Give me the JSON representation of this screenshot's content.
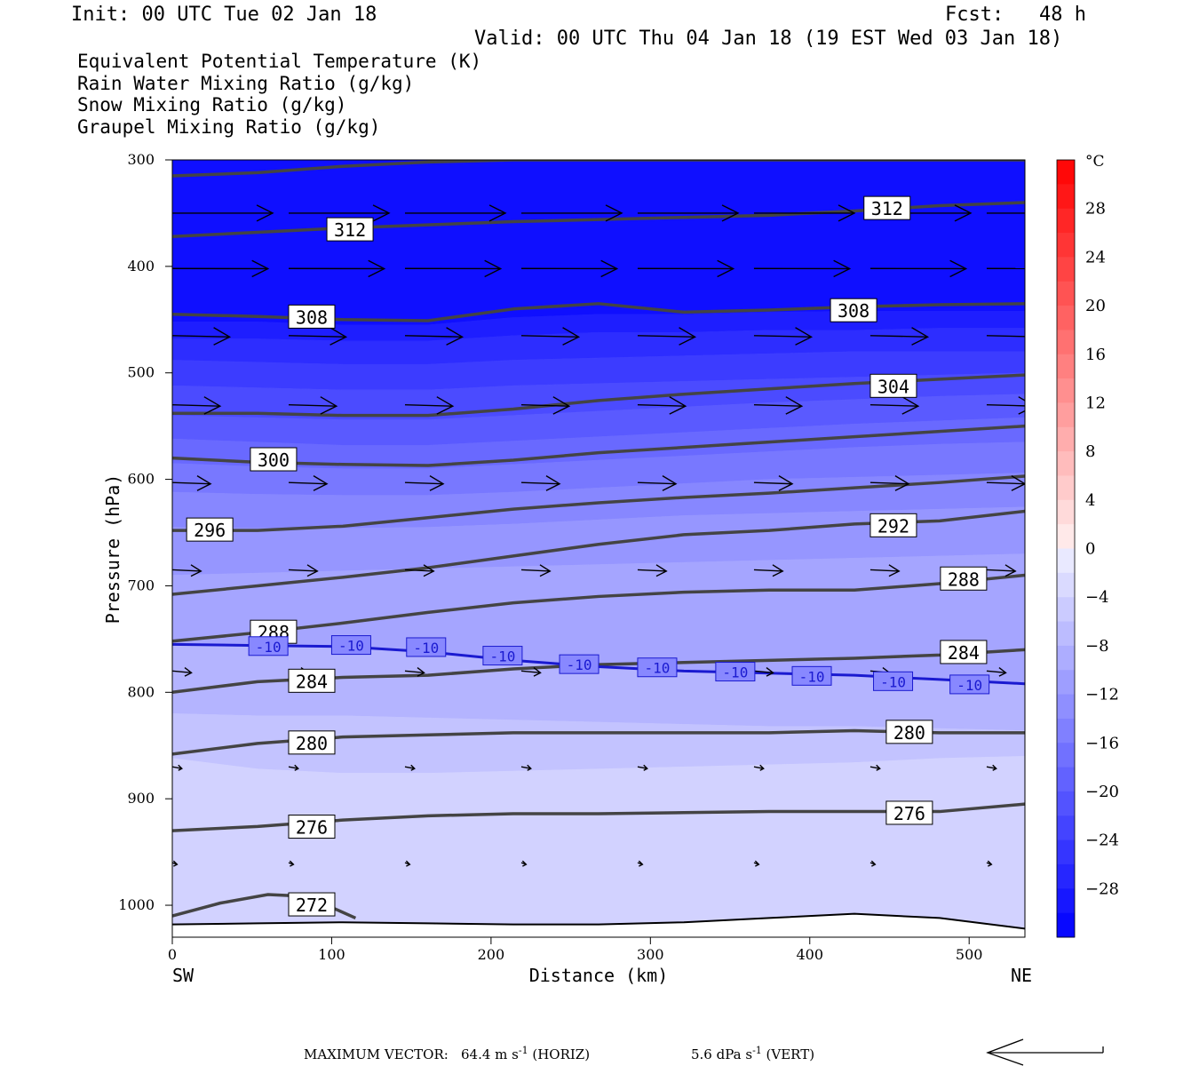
{
  "header": {
    "init": "Init: 00 UTC Tue 02 Jan 18",
    "fcst": "Fcst:   48 h",
    "valid": "Valid: 00 UTC Thu 04 Jan 18 (19 EST Wed 03 Jan 18)"
  },
  "legend": [
    {
      "label": "Equivalent Potential Temperature (K)",
      "color": "#555555"
    },
    {
      "label": "Rain Water Mixing Ratio (g/kg)",
      "color": "#007a00"
    },
    {
      "label": "Snow Mixing Ratio (g/kg)",
      "color": "#f08a55"
    },
    {
      "label": "Graupel Mixing Ratio (g/kg)",
      "color": "#f07ad0"
    }
  ],
  "footer": {
    "max_vector_label": "MAXIMUM VECTOR:",
    "horiz": "64.4 m s",
    "horiz_suffix": " (HORIZ)",
    "vert": "5.6 dPa s",
    "vert_suffix": " (VERT)",
    "exponent": "-1"
  },
  "chart_data": {
    "type": "cross-section",
    "xlabel": "Distance (km)",
    "ylabel": "Pressure (hPa)",
    "xlim": [
      0,
      535
    ],
    "ylim": [
      300,
      1030
    ],
    "x_ticks": [
      0,
      100,
      200,
      300,
      400,
      500
    ],
    "y_ticks": [
      300,
      400,
      500,
      600,
      700,
      800,
      900,
      1000
    ],
    "left_end_label": "SW",
    "right_end_label": "NE",
    "colorbar": {
      "unit": "°C",
      "labels": [
        28,
        24,
        20,
        16,
        12,
        8,
        4,
        0,
        -4,
        -8,
        -12,
        -16,
        -20,
        -24,
        -28
      ],
      "range": [
        -32,
        32
      ],
      "step": 2
    },
    "temperature_fill_layers": [
      {
        "temp": -30,
        "top": 300,
        "bottom": [
          452,
          452,
          455,
          455,
          448,
          445,
          445,
          443,
          442,
          442,
          442
        ]
      },
      {
        "temp": -28,
        "bottom": [
          468,
          468,
          470,
          470,
          465,
          462,
          462,
          460,
          460,
          458,
          458
        ]
      },
      {
        "temp": -26,
        "bottom": [
          488,
          490,
          492,
          492,
          488,
          486,
          484,
          482,
          480,
          480,
          480
        ]
      },
      {
        "temp": -24,
        "bottom": [
          512,
          514,
          516,
          516,
          512,
          510,
          508,
          506,
          504,
          502,
          500
        ]
      },
      {
        "temp": -22,
        "bottom": [
          540,
          542,
          544,
          544,
          540,
          536,
          532,
          528,
          525,
          522,
          520
        ]
      },
      {
        "temp": -20,
        "bottom": [
          562,
          565,
          568,
          568,
          564,
          560,
          556,
          552,
          548,
          545,
          542
        ]
      },
      {
        "temp": -18,
        "bottom": [
          585,
          588,
          590,
          590,
          586,
          582,
          578,
          574,
          570,
          567,
          565
        ]
      },
      {
        "temp": -16,
        "bottom": [
          612,
          614,
          615,
          615,
          612,
          608,
          604,
          600,
          598,
          596,
          594
        ]
      },
      {
        "temp": -14,
        "bottom": [
          645,
          646,
          646,
          645,
          642,
          638,
          634,
          632,
          630,
          628,
          626
        ]
      },
      {
        "temp": -12,
        "bottom": [
          690,
          688,
          686,
          684,
          682,
          680,
          678,
          676,
          674,
          672,
          670
        ]
      },
      {
        "temp": -10,
        "bottom": [
          755,
          756,
          757,
          762,
          770,
          776,
          780,
          782,
          784,
          788,
          792
        ]
      },
      {
        "temp": -8,
        "bottom": [
          820,
          822,
          822,
          824,
          826,
          828,
          830,
          832,
          832,
          834,
          836
        ]
      },
      {
        "temp": -6,
        "bottom": [
          862,
          872,
          876,
          876,
          874,
          872,
          870,
          868,
          866,
          862,
          860
        ]
      },
      {
        "temp": -4,
        "bottom": [
          1030,
          1030,
          1030,
          1030,
          1030,
          1030,
          1030,
          1030,
          1030,
          1030,
          1030
        ]
      }
    ],
    "ground_pressure": [
      1018,
      1017,
      1016,
      1017,
      1018,
      1018,
      1016,
      1012,
      1008,
      1012,
      1022
    ],
    "isotherm_minus10": {
      "pressure": [
        755,
        756,
        757,
        762,
        770,
        776,
        780,
        782,
        784,
        788,
        792
      ],
      "labels": [
        {
          "x": 48,
          "p": 757,
          "text": "-10"
        },
        {
          "x": 100,
          "p": 756,
          "text": "-10"
        },
        {
          "x": 147,
          "p": 758,
          "text": "-10"
        },
        {
          "x": 195,
          "p": 766,
          "text": "-10"
        },
        {
          "x": 243,
          "p": 774,
          "text": "-10"
        },
        {
          "x": 292,
          "p": 777,
          "text": "-10"
        },
        {
          "x": 341,
          "p": 781,
          "text": "-10"
        },
        {
          "x": 389,
          "p": 785,
          "text": "-10"
        },
        {
          "x": 440,
          "p": 790,
          "text": "-10"
        },
        {
          "x": 488,
          "p": 793,
          "text": "-10"
        }
      ]
    },
    "theta_e_contours": [
      {
        "value": 312,
        "pressure": [
          315,
          312,
          306,
          302,
          300,
          300,
          300,
          300,
          300,
          300,
          300
        ]
      },
      {
        "value": 312,
        "pressure": [
          372,
          368,
          364,
          361,
          358,
          356,
          354,
          352,
          348,
          343,
          340
        ]
      },
      {
        "value": 308,
        "pressure": [
          445,
          447,
          450,
          451,
          440,
          435,
          443,
          441,
          438,
          436,
          435
        ]
      },
      {
        "value": 304,
        "pressure": [
          538,
          538,
          540,
          540,
          534,
          526,
          520,
          515,
          510,
          506,
          502
        ]
      },
      {
        "value": 300,
        "pressure": [
          580,
          584,
          586,
          587,
          582,
          575,
          570,
          565,
          560,
          555,
          550
        ]
      },
      {
        "value": 296,
        "pressure": [
          648,
          648,
          644,
          636,
          628,
          622,
          617,
          613,
          608,
          603,
          597
        ]
      },
      {
        "value": 292,
        "pressure": [
          708,
          700,
          692,
          683,
          672,
          661,
          652,
          648,
          642,
          639,
          630
        ]
      },
      {
        "value": 288,
        "pressure": [
          752,
          744,
          735,
          725,
          716,
          710,
          706,
          704,
          704,
          698,
          690
        ]
      },
      {
        "value": 284,
        "pressure": [
          800,
          790,
          786,
          784,
          778,
          774,
          772,
          770,
          768,
          765,
          760
        ]
      },
      {
        "value": 280,
        "pressure": [
          858,
          848,
          842,
          840,
          838,
          838,
          838,
          838,
          836,
          838,
          838
        ]
      },
      {
        "value": 276,
        "pressure": [
          930,
          926,
          920,
          916,
          914,
          914,
          913,
          912,
          912,
          912,
          905
        ]
      }
    ],
    "theta_e_272": {
      "x": [
        0,
        30,
        60,
        90,
        100,
        115
      ],
      "pressure": [
        1010,
        998,
        990,
        992,
        1002,
        1012
      ]
    },
    "theta_e_labels": [
      {
        "x": 97,
        "p": 366,
        "text": "312"
      },
      {
        "x": 434,
        "p": 346,
        "text": "312"
      },
      {
        "x": 73,
        "p": 448,
        "text": "308"
      },
      {
        "x": 413,
        "p": 442,
        "text": "308"
      },
      {
        "x": 438,
        "p": 513,
        "text": "304"
      },
      {
        "x": 49,
        "p": 582,
        "text": "300"
      },
      {
        "x": 9,
        "p": 648,
        "text": "296"
      },
      {
        "x": 438,
        "p": 644,
        "text": "292"
      },
      {
        "x": 482,
        "p": 694,
        "text": "288"
      },
      {
        "x": 49,
        "p": 744,
        "text": "288"
      },
      {
        "x": 482,
        "p": 763,
        "text": "284"
      },
      {
        "x": 73,
        "p": 790,
        "text": "284"
      },
      {
        "x": 73,
        "p": 848,
        "text": "280"
      },
      {
        "x": 448,
        "p": 838,
        "text": "280"
      },
      {
        "x": 73,
        "p": 927,
        "text": "276"
      },
      {
        "x": 448,
        "p": 914,
        "text": "276"
      },
      {
        "x": 73,
        "p": 1000,
        "text": "272"
      }
    ],
    "wind_vectors": [
      {
        "p": 350,
        "len_km": 63,
        "tilt": 0
      },
      {
        "p": 402,
        "len_km": 60,
        "tilt": 0.2
      },
      {
        "p": 465,
        "len_km": 36,
        "tilt": 1.5
      },
      {
        "p": 530,
        "len_km": 30,
        "tilt": 1.5
      },
      {
        "p": 603,
        "len_km": 24,
        "tilt": 1.5
      },
      {
        "p": 685,
        "len_km": 18,
        "tilt": 1.5
      },
      {
        "p": 780,
        "len_km": 12,
        "tilt": 2
      },
      {
        "p": 870,
        "len_km": 6,
        "tilt": 2
      },
      {
        "p": 960,
        "len_km": 3,
        "tilt": 2
      }
    ]
  }
}
